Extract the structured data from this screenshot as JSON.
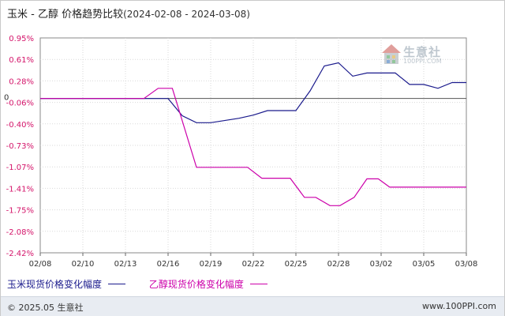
{
  "title": {
    "main": "玉米 - 乙醇 价格趋势比较",
    "range": "(2024-02-08 - 2024-03-08)"
  },
  "legend": [
    {
      "label": "玉米现货价格变化幅度",
      "color": "#1a1a8c"
    },
    {
      "label": "乙醇现货价格变化幅度",
      "color": "#cc00aa"
    }
  ],
  "footer": {
    "copyright": "© 2025.05 生意社",
    "url": "www.100PPI.com"
  },
  "watermark": {
    "name": "生意社",
    "url": "100PPI.COM",
    "icon": "house-logo-icon"
  },
  "chart_data": {
    "type": "line",
    "title": "玉米 - 乙醇 价格趋势比较",
    "xlabel": "",
    "ylabel": "",
    "x_ticks": [
      "02/08",
      "02/10",
      "02/13",
      "02/16",
      "02/19",
      "02/22",
      "02/25",
      "02/28",
      "03/02",
      "03/05",
      "03/08"
    ],
    "y_ticks": [
      "0.95%",
      "0.61%",
      "0.28%",
      "-0.06%",
      "-0.40%",
      "-0.73%",
      "-1.07%",
      "-1.41%",
      "-1.75%",
      "-2.08%",
      "-2.42%"
    ],
    "zero_label": "0",
    "ylim": [
      -2.42,
      0.95
    ],
    "xlim": [
      0,
      29
    ],
    "grid": true,
    "legend_position": "bottom",
    "series": [
      {
        "name": "玉米现货价格变化幅度",
        "color": "#1a1a8c",
        "points": [
          [
            0,
            0
          ],
          [
            9,
            0
          ],
          [
            10,
            -0.27
          ],
          [
            11,
            -0.38
          ],
          [
            12,
            -0.38
          ],
          [
            14,
            -0.31
          ],
          [
            15,
            -0.26
          ],
          [
            16,
            -0.19
          ],
          [
            18,
            -0.19
          ],
          [
            19,
            0.12
          ],
          [
            20,
            0.51
          ],
          [
            21,
            0.56
          ],
          [
            22,
            0.35
          ],
          [
            23,
            0.4
          ],
          [
            25,
            0.4
          ],
          [
            26,
            0.22
          ],
          [
            27,
            0.22
          ],
          [
            28,
            0.16
          ],
          [
            29,
            0.25
          ],
          [
            30,
            0.25
          ]
        ]
      },
      {
        "name": "乙醇现货价格变化幅度",
        "color": "#cc00aa",
        "points": [
          [
            0,
            0
          ],
          [
            7.3,
            0
          ],
          [
            8.3,
            0.16
          ],
          [
            9.3,
            0.16
          ],
          [
            11,
            -1.08
          ],
          [
            14.6,
            -1.08
          ],
          [
            15.6,
            -1.25
          ],
          [
            17.6,
            -1.25
          ],
          [
            18.6,
            -1.55
          ],
          [
            19.4,
            -1.55
          ],
          [
            20.4,
            -1.68
          ],
          [
            21.1,
            -1.68
          ],
          [
            22.1,
            -1.55
          ],
          [
            23,
            -1.26
          ],
          [
            23.8,
            -1.26
          ],
          [
            24.6,
            -1.39
          ],
          [
            30,
            -1.39
          ]
        ]
      }
    ]
  }
}
